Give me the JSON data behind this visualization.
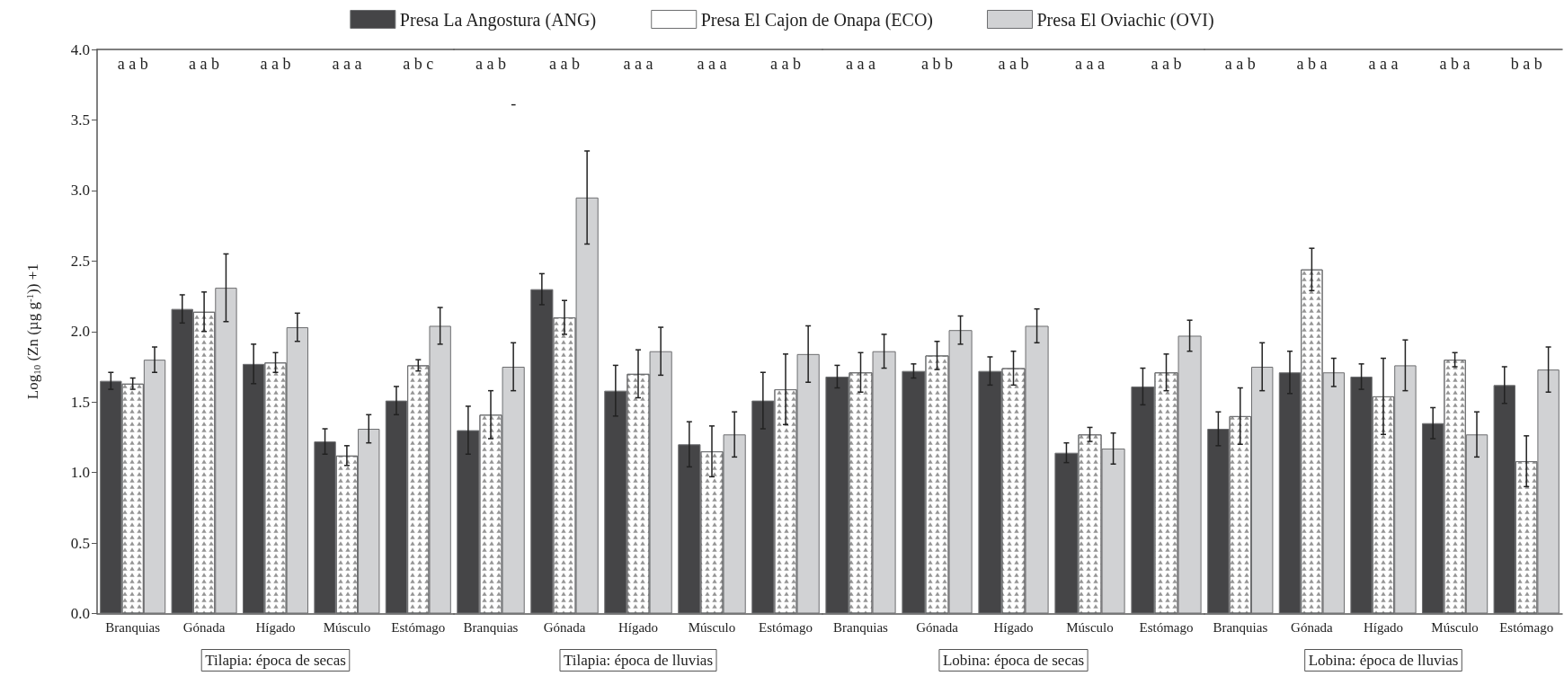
{
  "chart_data": [
    {
      "type": "bar",
      "xlabel": "Tilapia: época de secas",
      "ylabel": "Log$_{10}$ (Zn (µg g$^{-1}$)) +1",
      "categories": [
        "Branquias",
        "Gónada",
        "Hígado",
        "Músculo",
        "Estómago"
      ],
      "series": [
        {
          "name": "Presa La Angostura (ANG)",
          "color": "#454547",
          "values": [
            1.65,
            2.16,
            1.77,
            1.22,
            1.51
          ],
          "errors": [
            0.06,
            0.1,
            0.14,
            0.09,
            0.1
          ]
        },
        {
          "name": "Presa El Cajon de Onapa (ECO)",
          "color": "#ffffff",
          "values": [
            1.63,
            2.14,
            1.78,
            1.12,
            1.76
          ],
          "errors": [
            0.04,
            0.14,
            0.07,
            0.07,
            0.04
          ]
        },
        {
          "name": "Presa El Oviachic (OVI)",
          "color": "#d1d2d4",
          "values": [
            1.8,
            2.31,
            2.03,
            1.31,
            2.04
          ],
          "errors": [
            0.09,
            0.24,
            0.1,
            0.1,
            0.13
          ]
        }
      ],
      "annotations": [
        "a a b",
        "a a b",
        "a a b",
        "a a a",
        "a b c"
      ],
      "ylim": [
        0,
        4
      ],
      "yticks": [
        {
          "value": 0,
          "label": "0.0"
        },
        {
          "value": 0.5,
          "label": "0.5"
        },
        {
          "value": 1,
          "label": "1.0"
        },
        {
          "value": 1.5,
          "label": "1.5"
        },
        {
          "value": 2,
          "label": "2.0"
        },
        {
          "value": 2.5,
          "label": "2.5"
        },
        {
          "value": 3,
          "label": "3.0"
        },
        {
          "value": 3.5,
          "label": "3.5"
        },
        {
          "value": 4,
          "label": "4.0"
        }
      ],
      "legend": "top"
    },
    {
      "type": "bar",
      "xlabel": "Tilapia: época de lluvias",
      "categories": [
        "Branquias",
        "Gónada",
        "Hígado",
        "Músculo",
        "Estómago"
      ],
      "series": [
        {
          "color": "#454547",
          "values": [
            1.3,
            2.3,
            1.58,
            1.2,
            1.51
          ],
          "errors": [
            0.17,
            0.11,
            0.18,
            0.16,
            0.2
          ]
        },
        {
          "color": "#ffffff",
          "values": [
            1.41,
            2.1,
            1.7,
            1.15,
            1.59
          ],
          "errors": [
            0.17,
            0.12,
            0.17,
            0.18,
            0.25
          ]
        },
        {
          "color": "#d1d2d4",
          "values": [
            1.75,
            2.95,
            1.86,
            1.27,
            1.84
          ],
          "errors": [
            0.17,
            0.33,
            0.17,
            0.16,
            0.2
          ]
        }
      ],
      "annotations": [
        "a a b",
        "a a b",
        "a a a",
        "a a a",
        "a a b",
        "-"
      ],
      "ylim": [
        0,
        4
      ],
      "tick_labels": "x"
    },
    {
      "type": "bar",
      "xlabel": "Lobina: época de secas",
      "categories": [
        "Branquias",
        "Gónada",
        "Hígado",
        "Músculo",
        "Estómago"
      ],
      "series": [
        {
          "color": "#454547",
          "values": [
            1.68,
            1.72,
            1.72,
            1.14,
            1.61
          ],
          "errors": [
            0.08,
            0.05,
            0.1,
            0.07,
            0.13
          ]
        },
        {
          "color": "#ffffff",
          "values": [
            1.71,
            1.83,
            1.74,
            1.27,
            1.71
          ],
          "errors": [
            0.14,
            0.1,
            0.12,
            0.05,
            0.13
          ]
        },
        {
          "color": "#d1d2d4",
          "values": [
            1.86,
            2.01,
            2.04,
            1.17,
            1.97
          ],
          "errors": [
            0.12,
            0.1,
            0.12,
            0.11,
            0.11
          ]
        }
      ],
      "annotations": [
        "a a a",
        "a b b",
        "a a b",
        "a a a",
        "a a b"
      ],
      "ylim": [
        0,
        4
      ],
      "tick_labels": "x"
    },
    {
      "type": "bar",
      "xlabel": "Lobina: época de lluvias",
      "categories": [
        "Branquias",
        "Gónada",
        "Hígado",
        "Músculo",
        "Estómago"
      ],
      "series": [
        {
          "color": "#454547",
          "values": [
            1.31,
            1.71,
            1.68,
            1.35,
            1.62
          ],
          "errors": [
            0.12,
            0.15,
            0.09,
            0.11,
            0.13
          ]
        },
        {
          "color": "#ffffff",
          "values": [
            1.4,
            2.44,
            1.54,
            1.8,
            1.08
          ],
          "errors": [
            0.2,
            0.15,
            0.27,
            0.05,
            0.18
          ]
        },
        {
          "color": "#d1d2d4",
          "values": [
            1.75,
            1.71,
            1.76,
            1.27,
            1.73
          ],
          "errors": [
            0.17,
            0.1,
            0.18,
            0.16,
            0.16
          ]
        }
      ],
      "annotations": [
        "a a b",
        "a b a",
        "a a a",
        "a b a",
        "b a b"
      ],
      "ylim": [
        0,
        4
      ],
      "tick_labels": "x"
    }
  ]
}
